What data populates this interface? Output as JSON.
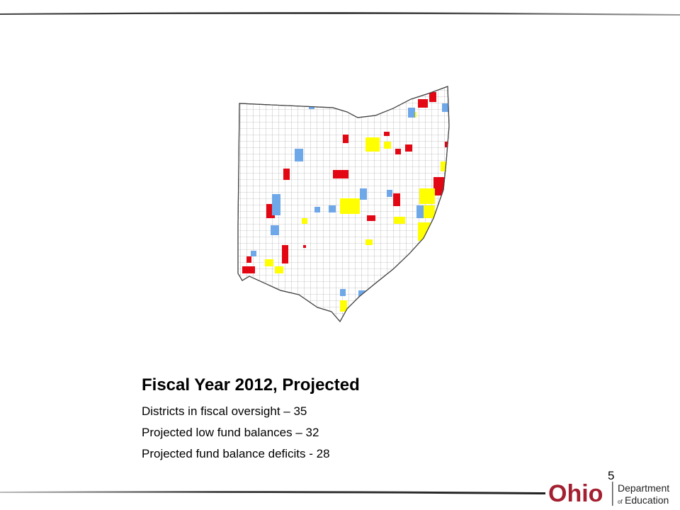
{
  "slide": {
    "title": "Fiscal Year 2012, Projected",
    "lines": [
      "Districts in fiscal oversight – 35",
      "Projected low fund balances – 32",
      "Projected fund balance deficits - 28"
    ],
    "page_number": "5"
  },
  "map": {
    "subject": "Ohio school districts",
    "legend_colors": {
      "oversight": "#e30613",
      "low_balance": "#ffff00",
      "deficit": "#6fa8e8"
    }
  },
  "logo": {
    "wordmark": "Ohio",
    "line1": "Department",
    "line2_small": "of",
    "line2": "Education"
  },
  "colors": {
    "accent": "#a32030",
    "rule": "#333333"
  }
}
